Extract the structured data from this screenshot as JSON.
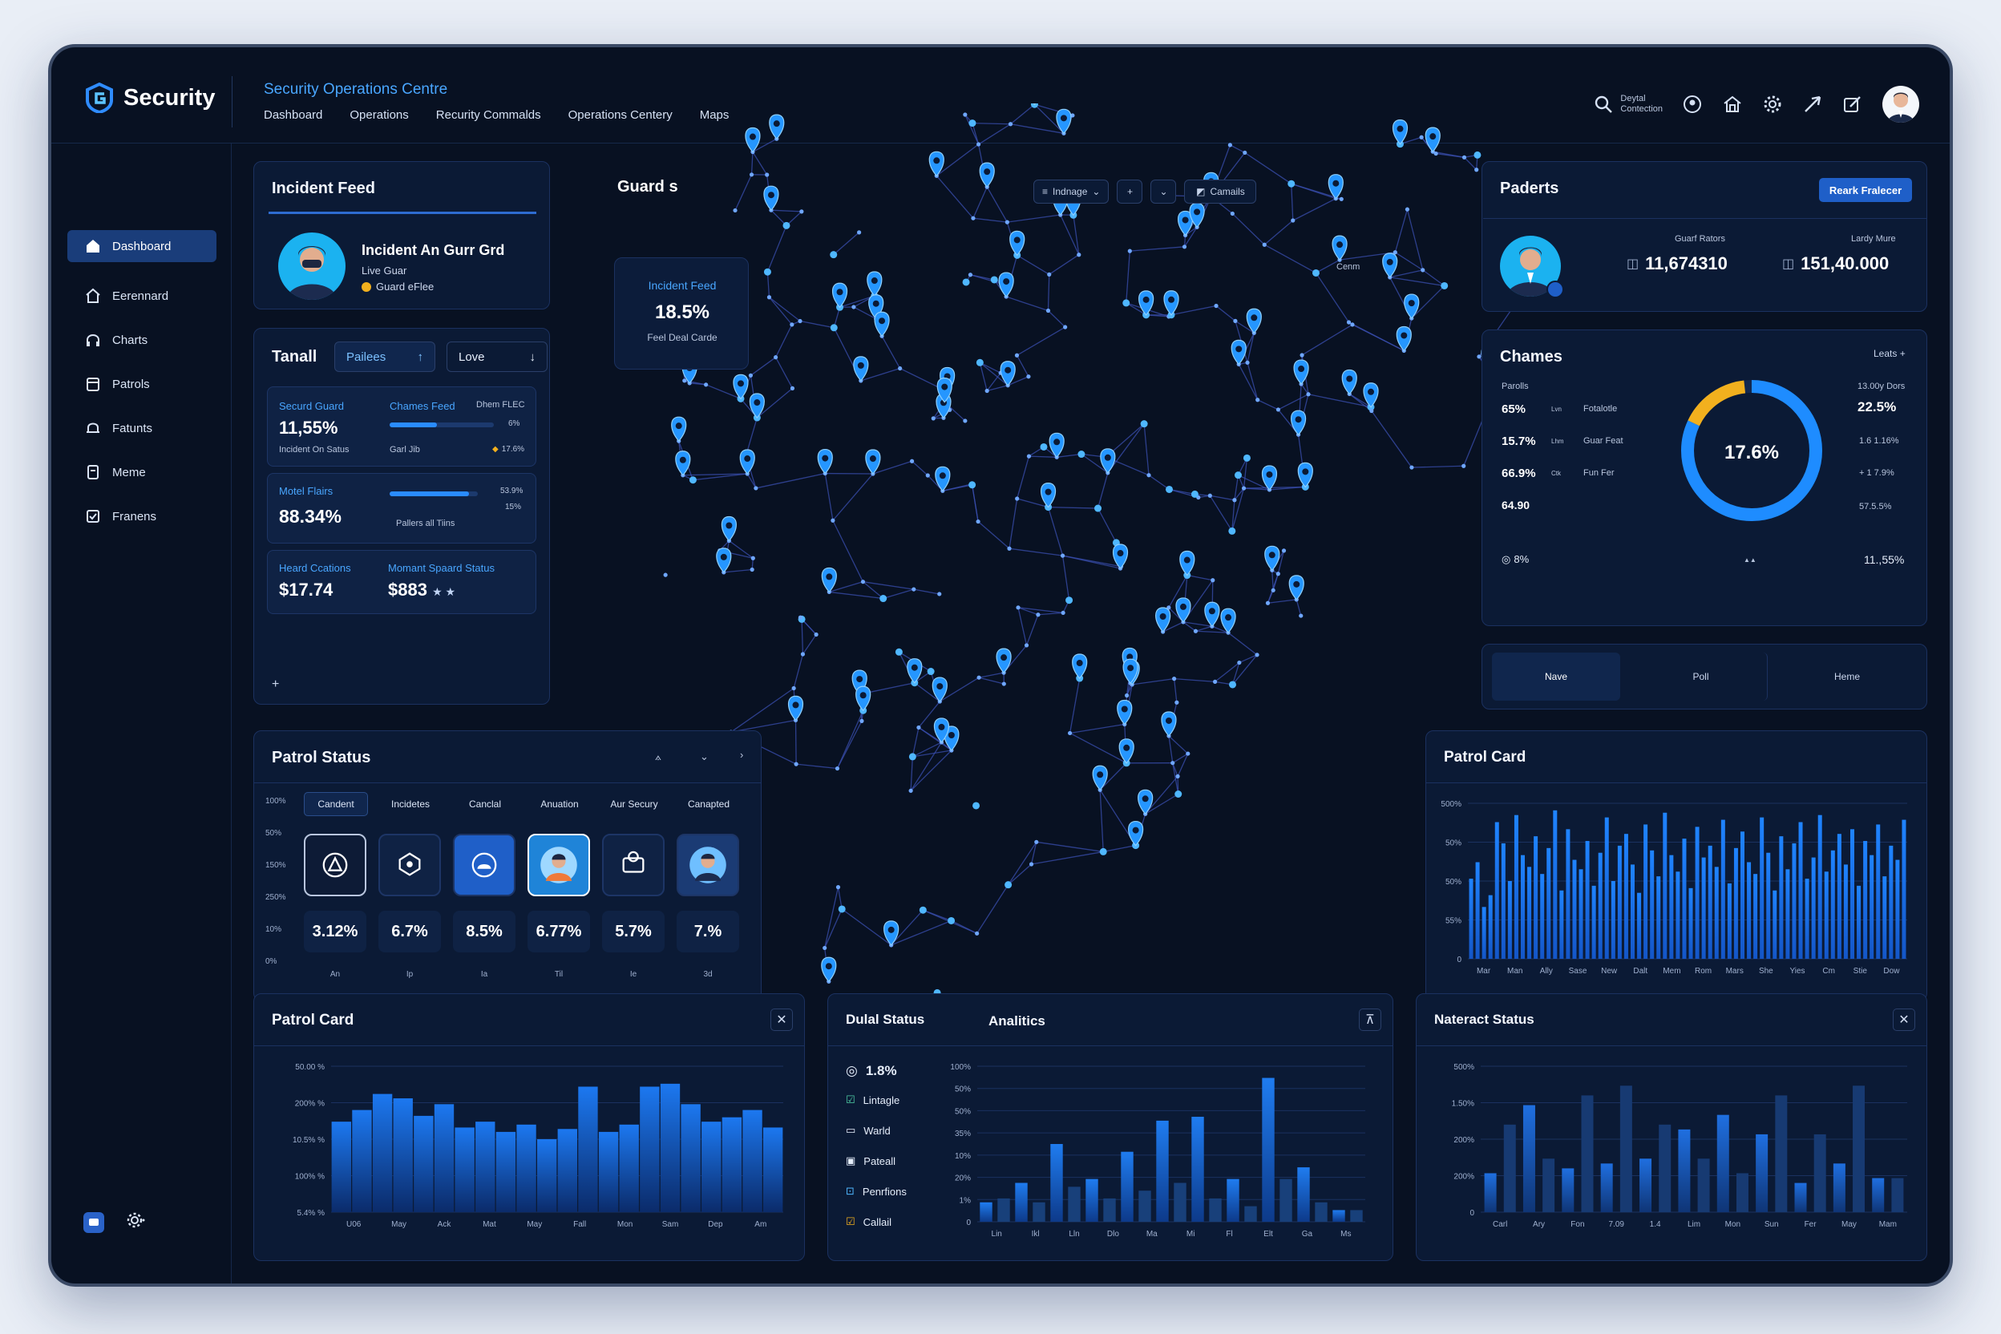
{
  "app": {
    "name": "Security",
    "centre_title": "Security Operations Centre"
  },
  "topnav": [
    "Dashboard",
    "Operations",
    "Recurity  Commalds",
    "Operations Centery",
    "Maps"
  ],
  "topright": {
    "digital_label_1": "Deytal",
    "digital_label_2": "Contection"
  },
  "sidebar": {
    "items": [
      "Dashboard",
      "Eerennard",
      "Charts",
      "Patrols",
      "Fatunts",
      "Meme",
      "Franens"
    ]
  },
  "incident_feed": {
    "title": "Incident Feed",
    "name": "Incident An Gurr Grd",
    "sub": "Live Guar",
    "badge": "Guard eFlee"
  },
  "guards": {
    "title": "Guard s",
    "card_label": "Incident Feed",
    "card_value": "18.5%",
    "card_sub": "Feel Deal Carde"
  },
  "tanall": {
    "title": "Tanall",
    "chip1": "Pailees",
    "chip2": "Love",
    "row1": {
      "l1": "Securd Guard",
      "v1": "11,55%",
      "s1": "Incident On Satus",
      "l2": "Chames Feed",
      "l3": "Dhem FLEC",
      "s2": "Garl Jib",
      "pct": "6%",
      "pct2": "17.6%"
    },
    "row2": {
      "l1": "Motel Flairs",
      "v1": "88.34%",
      "s1": "Pallers all Tiins",
      "p1": "53.9%",
      "p2": "15%"
    },
    "row3": {
      "l1": "Heard Ccations",
      "v1": "$17.74",
      "l2": "Momant Spaard Status",
      "v2": "$883"
    }
  },
  "map_tools": {
    "search": "Indnage",
    "btn": "Camails",
    "region_label": "Cenm"
  },
  "paderts": {
    "title": "Paderts",
    "button": "Reark Fralecer",
    "col1_label": "Guarf Rators",
    "col1_value": "11,674310",
    "col2_label": "Lardy Mure",
    "col2_value": "151,40.000"
  },
  "chames": {
    "title": "Chames",
    "link": "Leats +",
    "head_left": "Parolls",
    "head_right": "13.00y Dors",
    "rows": [
      {
        "v": "65%",
        "t": "Lvn",
        "n": "Fotalotle"
      },
      {
        "v": "15.7%",
        "t": "Lhm",
        "n": "Guar Feat"
      },
      {
        "v": "66.9%",
        "t": "Ctk",
        "n": "Fun Fer"
      },
      {
        "v": "64.90",
        "t": "",
        "n": ""
      }
    ],
    "right": [
      "22.5%",
      "1.6 1.16%",
      "+ 1 7.9%",
      "57.5.5%"
    ],
    "donut_value": "17.6%",
    "donut_fraction": 0.82,
    "bottom_left": "8%",
    "bottom_mid": "▲▲",
    "bottom_right": "11.,55%"
  },
  "tabs3": [
    "Nave",
    "Poll",
    "Heme"
  ],
  "patrol_status": {
    "title": "Patrol Status",
    "y_labels": [
      "100%",
      "50%",
      "150%",
      "250%",
      "10%",
      "0%"
    ],
    "tabs": [
      "Candent",
      "Incidetes",
      "Canclal",
      "Anuation",
      "Aur Secury",
      "Canapted"
    ],
    "values": [
      "3.12%",
      "6.7%",
      "8.5%",
      "6.77%",
      "5.7%",
      "7.%"
    ],
    "x_labels": [
      "An",
      "Ip",
      "Ia",
      "Til",
      "Ie",
      "3d"
    ]
  },
  "patrol_card_right": {
    "title": "Patrol Card",
    "y_labels": [
      "500%",
      "50%",
      "50%",
      "55%",
      "0"
    ],
    "x_labels": [
      "Mar",
      "Man",
      "Ally",
      "Sase",
      "New",
      "Dalt",
      "Mem",
      "Rom",
      "Mars",
      "She",
      "Yies",
      "Cm",
      "Stie",
      "Dow"
    ]
  },
  "patrol_card_left": {
    "title": "Patrol Card",
    "y_labels": [
      "50.00 %",
      "200% %",
      "10.5% %",
      "100% %",
      "5.4% %"
    ],
    "x_labels": [
      "U06",
      "May",
      "Ack",
      "Mat",
      "May",
      "Fall",
      "Mon",
      "Sam",
      "Dep",
      "Am"
    ]
  },
  "dual_status": {
    "title": "Dulal Status",
    "title2": "Analitics",
    "items": [
      "1.8%",
      "Lintagle",
      "Warld",
      "Pateall",
      "Penrfions",
      "Callail"
    ],
    "y_labels": [
      "100%",
      "50%",
      "50%",
      "35%",
      "10%",
      "20%",
      "1%",
      "0"
    ],
    "x_labels": [
      "Lin",
      "Ikl",
      "Lln",
      "Dlo",
      "Ma",
      "Mi",
      "Fl",
      "Elt",
      "Ga",
      "Ms"
    ]
  },
  "nateract": {
    "title": "Nateract Status",
    "y_labels": [
      "500%",
      "1.50%",
      "200%",
      "200%",
      "0"
    ],
    "x_labels": [
      "Carl",
      "Ary",
      "Fon",
      "7.09",
      "1.4",
      "Lim",
      "Mon",
      "Sun",
      "Fer",
      "May",
      "Mam"
    ]
  },
  "chart_data": [
    {
      "type": "bar",
      "title": "Patrol Card",
      "values": [
        34,
        41,
        22,
        27,
        58,
        49,
        33,
        61,
        44,
        39,
        52,
        36,
        47,
        63,
        29,
        55,
        42,
        38,
        50,
        31,
        45,
        60,
        33,
        48,
        53,
        40,
        28,
        57,
        46,
        35,
        62,
        44,
        37,
        51,
        30,
        56,
        43,
        48,
        39,
        59,
        32,
        47,
        54,
        41,
        36,
        60,
        45,
        29,
        52,
        38,
        49,
        58,
        34,
        43,
        61,
        37,
        46,
        53,
        40,
        55,
        31,
        50,
        44,
        57,
        35,
        48,
        42,
        59
      ]
    },
    {
      "type": "bar",
      "title": "Patrol Card",
      "values": [
        62,
        70,
        81,
        78,
        66,
        74,
        58,
        62,
        55,
        60,
        50,
        57,
        86,
        55,
        60,
        86,
        88,
        74,
        62,
        65,
        70,
        58
      ]
    },
    {
      "type": "bar",
      "title": "Analitics",
      "values": [
        5,
        6,
        10,
        5,
        20,
        9,
        11,
        6,
        18,
        8,
        26,
        10,
        27,
        6,
        11,
        4,
        37,
        11,
        14,
        5,
        3,
        3
      ]
    },
    {
      "type": "bar",
      "title": "Nateract Status",
      "values": [
        8,
        18,
        22,
        11,
        9,
        24,
        10,
        26,
        11,
        18,
        17,
        11,
        20,
        8,
        16,
        24,
        6,
        16,
        10,
        26,
        7,
        7
      ]
    }
  ]
}
